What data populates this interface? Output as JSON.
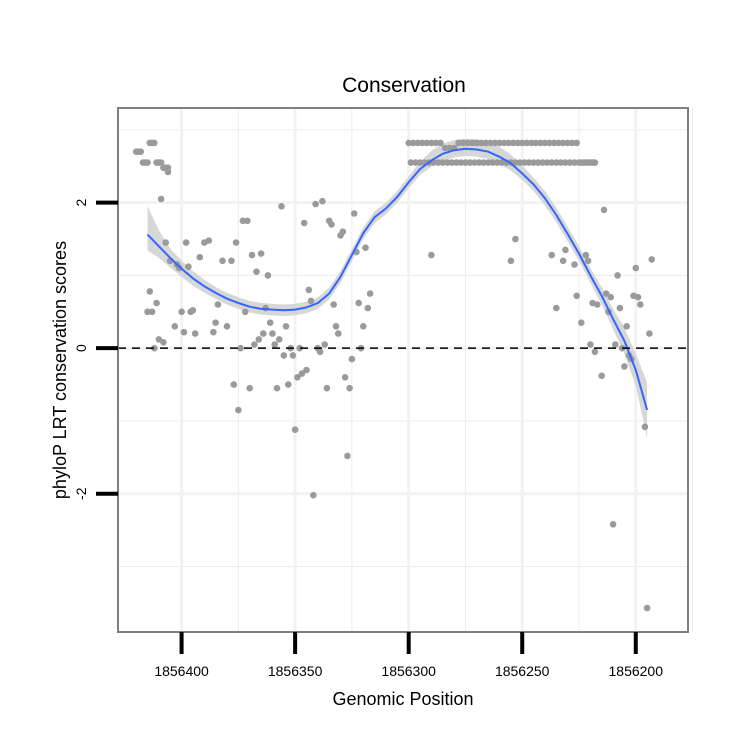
{
  "chart_data": {
    "type": "scatter",
    "title": "Conservation",
    "xlabel": "Genomic Position",
    "ylabel": "phyloP LRT conservation scores",
    "x_reversed": true,
    "xlim": [
      1856177,
      1856428
    ],
    "ylim": [
      -3.9,
      3.3
    ],
    "x_ticks": [
      {
        "value": 1856400,
        "label": "1856400"
      },
      {
        "value": 1856350,
        "label": "1856350"
      },
      {
        "value": 1856300,
        "label": "1856300"
      },
      {
        "value": 1856250,
        "label": "1856250"
      },
      {
        "value": 1856200,
        "label": "1856200"
      }
    ],
    "y_ticks": [
      {
        "value": 2,
        "label": "2"
      },
      {
        "value": 0,
        "label": "0"
      },
      {
        "value": -2,
        "label": "-2"
      }
    ],
    "minor_gridlines_y": [
      3,
      1,
      -1,
      -3
    ],
    "reference_line": {
      "y": 0,
      "style": "dashed"
    },
    "colors": {
      "points": "#9a9a9a",
      "smooth": "#3366ff",
      "ribbon": "#d0d0d0",
      "grid": "#ececec",
      "panel_border": "#7f7f7f",
      "reference": "#000000"
    },
    "points": [
      [
        1856414,
        0.78
      ],
      [
        1856415,
        0.5
      ],
      [
        1856413,
        0.5
      ],
      [
        1856411,
        0.62
      ],
      [
        1856412,
        0.0
      ],
      [
        1856410,
        0.12
      ],
      [
        1856409,
        2.05
      ],
      [
        1856408,
        0.08
      ],
      [
        1856407,
        1.45
      ],
      [
        1856406,
        2.42
      ],
      [
        1856405,
        1.2
      ],
      [
        1856403,
        0.3
      ],
      [
        1856402,
        1.15
      ],
      [
        1856401,
        1.1
      ],
      [
        1856400,
        0.5
      ],
      [
        1856399,
        0.22
      ],
      [
        1856398,
        1.45
      ],
      [
        1856397,
        1.12
      ],
      [
        1856396,
        0.5
      ],
      [
        1856395,
        0.52
      ],
      [
        1856394,
        0.2
      ],
      [
        1856392,
        1.25
      ],
      [
        1856390,
        1.45
      ],
      [
        1856388,
        1.48
      ],
      [
        1856386,
        0.22
      ],
      [
        1856385,
        0.35
      ],
      [
        1856384,
        0.6
      ],
      [
        1856382,
        1.2
      ],
      [
        1856380,
        0.3
      ],
      [
        1856378,
        1.2
      ],
      [
        1856377,
        -0.5
      ],
      [
        1856376,
        1.45
      ],
      [
        1856375,
        -0.85
      ],
      [
        1856374,
        0.0
      ],
      [
        1856373,
        1.75
      ],
      [
        1856372,
        0.5
      ],
      [
        1856371,
        1.75
      ],
      [
        1856370,
        -0.55
      ],
      [
        1856369,
        1.28
      ],
      [
        1856368,
        0.05
      ],
      [
        1856367,
        1.05
      ],
      [
        1856366,
        0.12
      ],
      [
        1856365,
        1.3
      ],
      [
        1856364,
        0.2
      ],
      [
        1856363,
        0.55
      ],
      [
        1856362,
        1.0
      ],
      [
        1856361,
        0.35
      ],
      [
        1856360,
        0.2
      ],
      [
        1856359,
        0.05
      ],
      [
        1856358,
        -0.55
      ],
      [
        1856357,
        0.12
      ],
      [
        1856356,
        1.95
      ],
      [
        1856355,
        -0.1
      ],
      [
        1856354,
        0.3
      ],
      [
        1856353,
        -0.5
      ],
      [
        1856352,
        0.0
      ],
      [
        1856351,
        -0.1
      ],
      [
        1856350,
        -1.12
      ],
      [
        1856349,
        -0.4
      ],
      [
        1856348,
        0.0
      ],
      [
        1856347,
        -0.35
      ],
      [
        1856346,
        1.72
      ],
      [
        1856345,
        -0.3
      ],
      [
        1856344,
        0.8
      ],
      [
        1856343,
        0.65
      ],
      [
        1856342,
        -2.02
      ],
      [
        1856341,
        1.98
      ],
      [
        1856340,
        0.0
      ],
      [
        1856339,
        -0.05
      ],
      [
        1856338,
        2.02
      ],
      [
        1856337,
        0.05
      ],
      [
        1856336,
        -0.55
      ],
      [
        1856335,
        1.75
      ],
      [
        1856334,
        1.7
      ],
      [
        1856333,
        0.6
      ],
      [
        1856332,
        0.3
      ],
      [
        1856331,
        0.2
      ],
      [
        1856330,
        1.55
      ],
      [
        1856329,
        1.6
      ],
      [
        1856328,
        -0.4
      ],
      [
        1856327,
        -1.48
      ],
      [
        1856326,
        -0.55
      ],
      [
        1856325,
        -0.15
      ],
      [
        1856324,
        1.85
      ],
      [
        1856323,
        1.32
      ],
      [
        1856322,
        0.62
      ],
      [
        1856321,
        0.0
      ],
      [
        1856320,
        0.3
      ],
      [
        1856319,
        1.38
      ],
      [
        1856318,
        0.55
      ],
      [
        1856317,
        0.75
      ],
      [
        1856290,
        1.28
      ],
      [
        1856255,
        1.2
      ],
      [
        1856253,
        1.5
      ],
      [
        1856237,
        1.28
      ],
      [
        1856235,
        0.55
      ],
      [
        1856232,
        1.2
      ],
      [
        1856231,
        1.35
      ],
      [
        1856227,
        1.15
      ],
      [
        1856226,
        0.72
      ],
      [
        1856224,
        0.35
      ],
      [
        1856222,
        1.28
      ],
      [
        1856221,
        1.2
      ],
      [
        1856220,
        0.05
      ],
      [
        1856219,
        0.62
      ],
      [
        1856218,
        -0.05
      ],
      [
        1856217,
        0.6
      ],
      [
        1856215,
        -0.38
      ],
      [
        1856214,
        1.9
      ],
      [
        1856213,
        0.75
      ],
      [
        1856212,
        0.5
      ],
      [
        1856211,
        0.7
      ],
      [
        1856210,
        -2.42
      ],
      [
        1856209,
        0.05
      ],
      [
        1856208,
        1.0
      ],
      [
        1856207,
        0.55
      ],
      [
        1856206,
        0.0
      ],
      [
        1856205,
        -0.25
      ],
      [
        1856204,
        0.3
      ],
      [
        1856203,
        -0.1
      ],
      [
        1856202,
        -0.15
      ],
      [
        1856201,
        0.72
      ],
      [
        1856200,
        1.1
      ],
      [
        1856199,
        0.7
      ],
      [
        1856198,
        0.6
      ],
      [
        1856196,
        -1.08
      ],
      [
        1856195,
        -3.57
      ],
      [
        1856194,
        0.2
      ],
      [
        1856193,
        1.22
      ],
      [
        1856420,
        2.7
      ],
      [
        1856419,
        2.7
      ],
      [
        1856418,
        2.7
      ],
      [
        1856417,
        2.55
      ],
      [
        1856416,
        2.55
      ],
      [
        1856415,
        2.55
      ],
      [
        1856414,
        2.82
      ],
      [
        1856413,
        2.82
      ],
      [
        1856412,
        2.82
      ],
      [
        1856411,
        2.55
      ],
      [
        1856410,
        2.55
      ],
      [
        1856409,
        2.55
      ],
      [
        1856408,
        2.48
      ],
      [
        1856407,
        2.48
      ],
      [
        1856406,
        2.48
      ],
      [
        1856300,
        2.82
      ],
      [
        1856299,
        2.55
      ],
      [
        1856298,
        2.82
      ],
      [
        1856297,
        2.55
      ],
      [
        1856296,
        2.82
      ],
      [
        1856295,
        2.55
      ],
      [
        1856294,
        2.82
      ],
      [
        1856293,
        2.55
      ],
      [
        1856292,
        2.82
      ],
      [
        1856291,
        2.55
      ],
      [
        1856290,
        2.82
      ],
      [
        1856289,
        2.55
      ],
      [
        1856288,
        2.82
      ],
      [
        1856287,
        2.55
      ],
      [
        1856286,
        2.82
      ],
      [
        1856285,
        2.55
      ],
      [
        1856284,
        2.75
      ],
      [
        1856283,
        2.55
      ],
      [
        1856282,
        2.75
      ],
      [
        1856281,
        2.55
      ],
      [
        1856280,
        2.75
      ],
      [
        1856279,
        2.55
      ],
      [
        1856278,
        2.82
      ],
      [
        1856277,
        2.55
      ],
      [
        1856276,
        2.82
      ],
      [
        1856275,
        2.55
      ],
      [
        1856274,
        2.82
      ],
      [
        1856273,
        2.55
      ],
      [
        1856272,
        2.82
      ],
      [
        1856271,
        2.55
      ],
      [
        1856270,
        2.82
      ],
      [
        1856269,
        2.55
      ],
      [
        1856268,
        2.82
      ],
      [
        1856267,
        2.55
      ],
      [
        1856266,
        2.82
      ],
      [
        1856265,
        2.55
      ],
      [
        1856264,
        2.82
      ],
      [
        1856263,
        2.55
      ],
      [
        1856262,
        2.82
      ],
      [
        1856261,
        2.55
      ],
      [
        1856260,
        2.82
      ],
      [
        1856259,
        2.55
      ],
      [
        1856258,
        2.82
      ],
      [
        1856257,
        2.55
      ],
      [
        1856256,
        2.82
      ],
      [
        1856255,
        2.55
      ],
      [
        1856254,
        2.82
      ],
      [
        1856253,
        2.55
      ],
      [
        1856252,
        2.82
      ],
      [
        1856251,
        2.55
      ],
      [
        1856250,
        2.82
      ],
      [
        1856249,
        2.55
      ],
      [
        1856248,
        2.82
      ],
      [
        1856247,
        2.55
      ],
      [
        1856246,
        2.82
      ],
      [
        1856245,
        2.55
      ],
      [
        1856244,
        2.82
      ],
      [
        1856243,
        2.55
      ],
      [
        1856242,
        2.82
      ],
      [
        1856241,
        2.55
      ],
      [
        1856240,
        2.82
      ],
      [
        1856239,
        2.55
      ],
      [
        1856238,
        2.82
      ],
      [
        1856237,
        2.55
      ],
      [
        1856236,
        2.82
      ],
      [
        1856235,
        2.55
      ],
      [
        1856234,
        2.82
      ],
      [
        1856233,
        2.55
      ],
      [
        1856232,
        2.82
      ],
      [
        1856231,
        2.55
      ],
      [
        1856230,
        2.82
      ],
      [
        1856229,
        2.55
      ],
      [
        1856228,
        2.82
      ],
      [
        1856227,
        2.55
      ],
      [
        1856226,
        2.82
      ],
      [
        1856225,
        2.55
      ],
      [
        1856224,
        2.55
      ],
      [
        1856223,
        2.55
      ],
      [
        1856222,
        2.55
      ],
      [
        1856221,
        2.55
      ],
      [
        1856220,
        2.55
      ],
      [
        1856219,
        2.55
      ],
      [
        1856218,
        2.55
      ]
    ],
    "smooth": {
      "x": [
        1856415,
        1856410,
        1856405,
        1856400,
        1856395,
        1856390,
        1856385,
        1856380,
        1856375,
        1856370,
        1856365,
        1856360,
        1856355,
        1856350,
        1856345,
        1856340,
        1856335,
        1856330,
        1856325,
        1856320,
        1856315,
        1856310,
        1856305,
        1856300,
        1856295,
        1856290,
        1856285,
        1856280,
        1856275,
        1856270,
        1856265,
        1856260,
        1856255,
        1856250,
        1856245,
        1856240,
        1856235,
        1856230,
        1856225,
        1856220,
        1856215,
        1856210,
        1856205,
        1856200,
        1856195
      ],
      "y": [
        1.56,
        1.4,
        1.24,
        1.09,
        0.96,
        0.85,
        0.76,
        0.68,
        0.62,
        0.57,
        0.54,
        0.53,
        0.52,
        0.53,
        0.56,
        0.62,
        0.75,
        0.98,
        1.28,
        1.58,
        1.8,
        1.92,
        2.08,
        2.28,
        2.46,
        2.58,
        2.67,
        2.72,
        2.74,
        2.73,
        2.7,
        2.63,
        2.54,
        2.4,
        2.25,
        2.06,
        1.83,
        1.57,
        1.3,
        1.0,
        0.72,
        0.4,
        0.1,
        -0.3,
        -0.85
      ],
      "lo": [
        1.34,
        1.24,
        1.11,
        0.98,
        0.86,
        0.76,
        0.68,
        0.6,
        0.54,
        0.49,
        0.46,
        0.45,
        0.44,
        0.45,
        0.48,
        0.54,
        0.67,
        0.9,
        1.2,
        1.5,
        1.72,
        1.84,
        2.0,
        2.2,
        2.38,
        2.49,
        2.57,
        2.62,
        2.64,
        2.63,
        2.6,
        2.53,
        2.44,
        2.31,
        2.16,
        1.96,
        1.73,
        1.47,
        1.2,
        0.9,
        0.6,
        0.26,
        -0.08,
        -0.52,
        -1.23
      ],
      "hi": [
        1.95,
        1.62,
        1.37,
        1.2,
        1.06,
        0.94,
        0.84,
        0.76,
        0.7,
        0.65,
        0.62,
        0.61,
        0.6,
        0.61,
        0.64,
        0.7,
        0.83,
        1.06,
        1.36,
        1.66,
        1.88,
        2.0,
        2.16,
        2.36,
        2.56,
        2.71,
        2.81,
        2.86,
        2.88,
        2.87,
        2.84,
        2.77,
        2.66,
        2.51,
        2.34,
        2.16,
        1.93,
        1.67,
        1.4,
        1.1,
        0.84,
        0.54,
        0.28,
        -0.08,
        -0.47
      ]
    }
  }
}
